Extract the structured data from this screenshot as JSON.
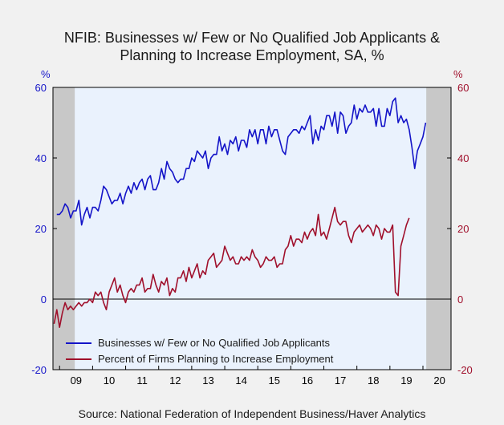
{
  "title_line1": "NFIB: Businesses w/ Few or No Qualified Job Applicants &",
  "title_line2": "Planning to Increase Employment, SA, %",
  "source": "Source:  National Federation of Independent Business/Haver Analytics",
  "colors": {
    "blue": "#1414c8",
    "red": "#a0102c",
    "plot_bg": "#eaf2fd",
    "recession": "#c8c8c8"
  },
  "chart_data": {
    "type": "line",
    "left_axis_unit": "%",
    "right_axis_unit": "%",
    "ylim": [
      -20,
      60
    ],
    "yticks": [
      -20,
      0,
      20,
      40,
      60
    ],
    "xlim": [
      2008.8,
      2020.85
    ],
    "x_tick_labels": [
      "09",
      "10",
      "11",
      "12",
      "13",
      "14",
      "15",
      "16",
      "17",
      "18",
      "19",
      "20"
    ],
    "x_tick_positions": [
      2009.5,
      2010.5,
      2011.5,
      2012.5,
      2013.5,
      2014.5,
      2015.5,
      2016.5,
      2017.5,
      2018.5,
      2019.5,
      2020.5
    ],
    "recessions": [
      [
        2008.8,
        2009.46
      ],
      [
        2020.1,
        2020.85
      ]
    ],
    "legend_placement": "bottom-left",
    "series": [
      {
        "name": "Businesses w/ Few or No Qualified Job Applicants",
        "color": "#1414c8",
        "x_start": 2008.917,
        "step": 0.08333,
        "values": [
          24,
          24,
          25,
          27,
          26,
          23,
          25,
          25,
          28,
          21,
          24,
          26,
          23,
          26,
          26,
          25,
          28,
          32,
          31,
          29,
          27,
          28,
          28,
          30,
          27,
          30,
          32,
          30,
          33,
          31,
          33,
          34,
          31,
          34,
          35,
          31,
          31,
          33,
          37,
          34,
          39,
          37,
          36,
          34,
          33,
          34,
          34,
          37,
          37,
          40,
          39,
          42,
          41,
          40,
          42,
          37,
          40,
          41,
          41,
          46,
          42,
          44,
          41,
          45,
          44,
          46,
          42,
          45,
          45,
          43,
          48,
          46,
          48,
          44,
          48,
          48,
          44,
          49,
          46,
          48,
          48,
          45,
          42,
          41,
          46,
          47,
          48,
          48,
          47,
          49,
          48,
          50,
          52,
          44,
          48,
          45,
          49,
          48,
          52,
          52,
          49,
          53,
          47,
          53,
          52,
          47,
          49,
          50,
          55,
          51,
          54,
          53,
          55,
          53,
          53,
          54,
          49,
          54,
          49,
          49,
          54,
          52,
          56,
          57,
          50,
          52,
          50,
          51,
          48,
          43,
          37,
          42,
          44,
          46,
          50
        ]
      },
      {
        "name": "Percent of Firms Planning to Increase Employment",
        "color": "#a0102c",
        "x_start": 2008.833,
        "step": 0.08333,
        "values": [
          -7,
          -3,
          -8,
          -4,
          -1,
          -3,
          -2,
          -3,
          -2,
          -1,
          -2,
          -1,
          -1,
          0,
          -1,
          2,
          1,
          2,
          -1,
          -3,
          2,
          4,
          6,
          2,
          4,
          1,
          -1,
          2,
          3,
          2,
          4,
          4,
          6,
          2,
          3,
          3,
          7,
          4,
          2,
          5,
          4,
          6,
          1,
          3,
          2,
          6,
          6,
          8,
          5,
          9,
          6,
          8,
          10,
          6,
          8,
          7,
          11,
          12,
          13,
          9,
          10,
          11,
          15,
          13,
          11,
          12,
          10,
          10,
          12,
          11,
          12,
          11,
          14,
          12,
          11,
          9,
          10,
          12,
          11,
          11,
          12,
          9,
          10,
          10,
          14,
          15,
          18,
          15,
          17,
          17,
          16,
          19,
          17,
          19,
          20,
          18,
          24,
          18,
          19,
          17,
          20,
          23,
          26,
          22,
          21,
          22,
          22,
          18,
          16,
          19,
          20,
          21,
          19,
          20,
          21,
          20,
          18,
          21,
          20,
          17,
          20,
          19,
          19,
          21,
          2,
          1,
          15,
          18,
          21,
          23
        ]
      }
    ]
  }
}
